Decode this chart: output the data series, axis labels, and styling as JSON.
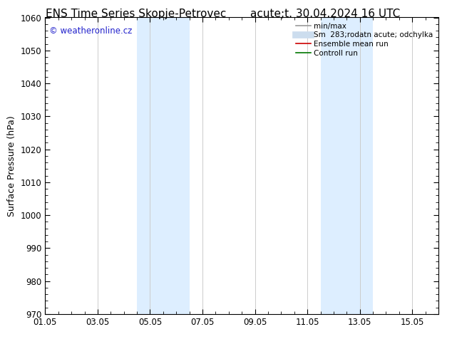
{
  "title_left": "ENS Time Series Skopje-Petrovec",
  "title_right": "acute;t. 30.04.2024 16 UTC",
  "ylabel": "Surface Pressure (hPa)",
  "ylim": [
    970,
    1060
  ],
  "yticks_major": [
    970,
    980,
    990,
    1000,
    1010,
    1020,
    1030,
    1040,
    1050,
    1060
  ],
  "xlim": [
    0,
    15
  ],
  "xtick_labels": [
    "01.05",
    "03.05",
    "05.05",
    "07.05",
    "09.05",
    "11.05",
    "13.05",
    "15.05"
  ],
  "xtick_positions": [
    0,
    2,
    4,
    6,
    8,
    10,
    12,
    14
  ],
  "shaded_regions": [
    {
      "xmin": 3.5,
      "xmax": 4.5,
      "color": "#ddeeff"
    },
    {
      "xmin": 4.5,
      "xmax": 5.5,
      "color": "#ddeeff"
    },
    {
      "xmin": 10.5,
      "xmax": 11.5,
      "color": "#ddeeff"
    },
    {
      "xmin": 11.5,
      "xmax": 12.5,
      "color": "#ddeeff"
    }
  ],
  "vlines_x": [
    0,
    2,
    4,
    6,
    8,
    10,
    12,
    14
  ],
  "vline_color": "#cccccc",
  "watermark_text": "© weatheronline.cz",
  "watermark_color": "#2222cc",
  "legend_entries": [
    {
      "label": "min/max",
      "color": "#999999",
      "lw": 1.2
    },
    {
      "label": "Sm  283;rodatn acute; odchylka",
      "color": "#ccddee",
      "lw": 7
    },
    {
      "label": "Ensemble mean run",
      "color": "#cc0000",
      "lw": 1.2
    },
    {
      "label": "Controll run",
      "color": "#007700",
      "lw": 1.2
    }
  ],
  "bg_color": "#ffffff",
  "spine_color": "#000000",
  "title_fontsize": 11,
  "ylabel_fontsize": 9,
  "tick_fontsize": 8.5,
  "legend_fontsize": 7.5,
  "watermark_fontsize": 8.5
}
